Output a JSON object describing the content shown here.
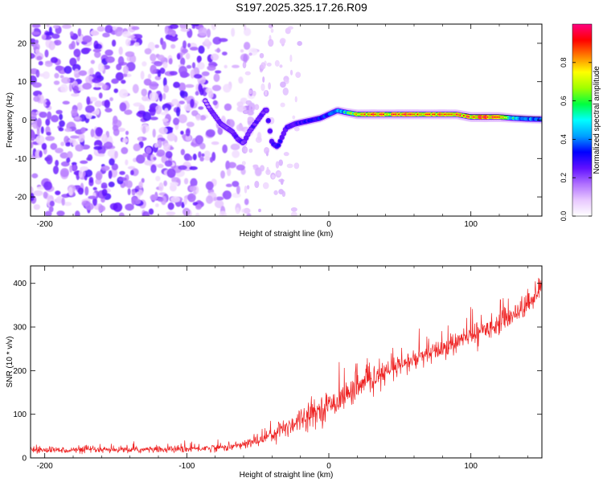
{
  "title": "S197.2025.325.17.26.R09",
  "chart_data": [
    {
      "type": "heatmap",
      "panel": "spectrogram",
      "xlabel": "Height of straight line (km)",
      "ylabel": "Frequency (Hz)",
      "xlim": [
        -210,
        150
      ],
      "ylim": [
        -25,
        25
      ],
      "xticks": [
        -200,
        -100,
        0,
        100
      ],
      "yticks": [
        -20,
        -10,
        0,
        10,
        20
      ],
      "colorbar": {
        "label": "Normalized spectral amplitude",
        "range": [
          0,
          1
        ],
        "ticks": [
          0.0,
          0.2,
          0.4,
          0.6,
          0.8
        ],
        "tick_labels": [
          "0.0",
          "0.2",
          "0.4",
          "0.6",
          "0.8"
        ],
        "colormap": [
          "#ffffff",
          "#e8c8ff",
          "#b070ff",
          "#6010ff",
          "#0000ff",
          "#00a0ff",
          "#00ffff",
          "#00ff40",
          "#a0ff00",
          "#ffff00",
          "#ff8000",
          "#ff0000",
          "#ff0080"
        ]
      },
      "noise_region": {
        "x_range": [
          -210,
          -45
        ],
        "freq_range": [
          -25,
          25
        ],
        "amplitude": 0.15
      },
      "signal_track": {
        "x": [
          -87,
          -84,
          -80,
          -76,
          -72,
          -68,
          -64,
          -60,
          -56,
          -52,
          -48,
          -44,
          -40,
          -36,
          -30,
          -24,
          -18,
          -12,
          -6,
          0,
          6,
          12,
          20,
          30,
          40,
          50,
          60,
          70,
          80,
          90,
          100,
          110,
          120,
          130,
          140,
          150
        ],
        "freq": [
          5,
          3,
          1,
          -1,
          -2,
          -3,
          -5,
          -6,
          -3,
          -1,
          1,
          3,
          -6,
          -7,
          -2,
          -1,
          -0.5,
          0,
          0.5,
          1.5,
          2.5,
          2,
          1.5,
          1.5,
          1.5,
          1.5,
          1.5,
          1.5,
          1.5,
          1.5,
          0.8,
          0.8,
          0.8,
          0.5,
          0.3,
          0.2
        ],
        "amplitude": [
          0.2,
          0.25,
          0.3,
          0.3,
          0.3,
          0.3,
          0.3,
          0.3,
          0.3,
          0.3,
          0.3,
          0.3,
          0.35,
          0.35,
          0.35,
          0.35,
          0.35,
          0.35,
          0.4,
          0.45,
          0.5,
          0.55,
          0.8,
          0.9,
          0.85,
          0.9,
          0.9,
          0.85,
          0.9,
          0.85,
          0.9,
          0.95,
          0.9,
          0.55,
          0.5,
          0.5
        ]
      }
    },
    {
      "type": "line",
      "panel": "snr",
      "xlabel": "Height of straight line (km)",
      "ylabel": "SNR (10 * v/v)",
      "xlim": [
        -210,
        150
      ],
      "ylim": [
        0,
        440
      ],
      "xticks": [
        -200,
        -100,
        0,
        100
      ],
      "yticks": [
        0,
        100,
        200,
        300,
        400
      ],
      "color": "#ee2222",
      "series": [
        {
          "name": "SNR",
          "x": [
            -210,
            -150,
            -100,
            -70,
            -60,
            -50,
            -40,
            -30,
            -20,
            -10,
            0,
            10,
            20,
            40,
            60,
            80,
            100,
            120,
            140,
            150
          ],
          "values": [
            18,
            18,
            20,
            25,
            30,
            40,
            55,
            70,
            90,
            105,
            120,
            140,
            160,
            195,
            225,
            250,
            280,
            310,
            350,
            395
          ],
          "noise": [
            8,
            8,
            9,
            10,
            12,
            16,
            22,
            28,
            32,
            34,
            34,
            34,
            34,
            30,
            28,
            28,
            28,
            28,
            30,
            30
          ]
        }
      ]
    }
  ]
}
